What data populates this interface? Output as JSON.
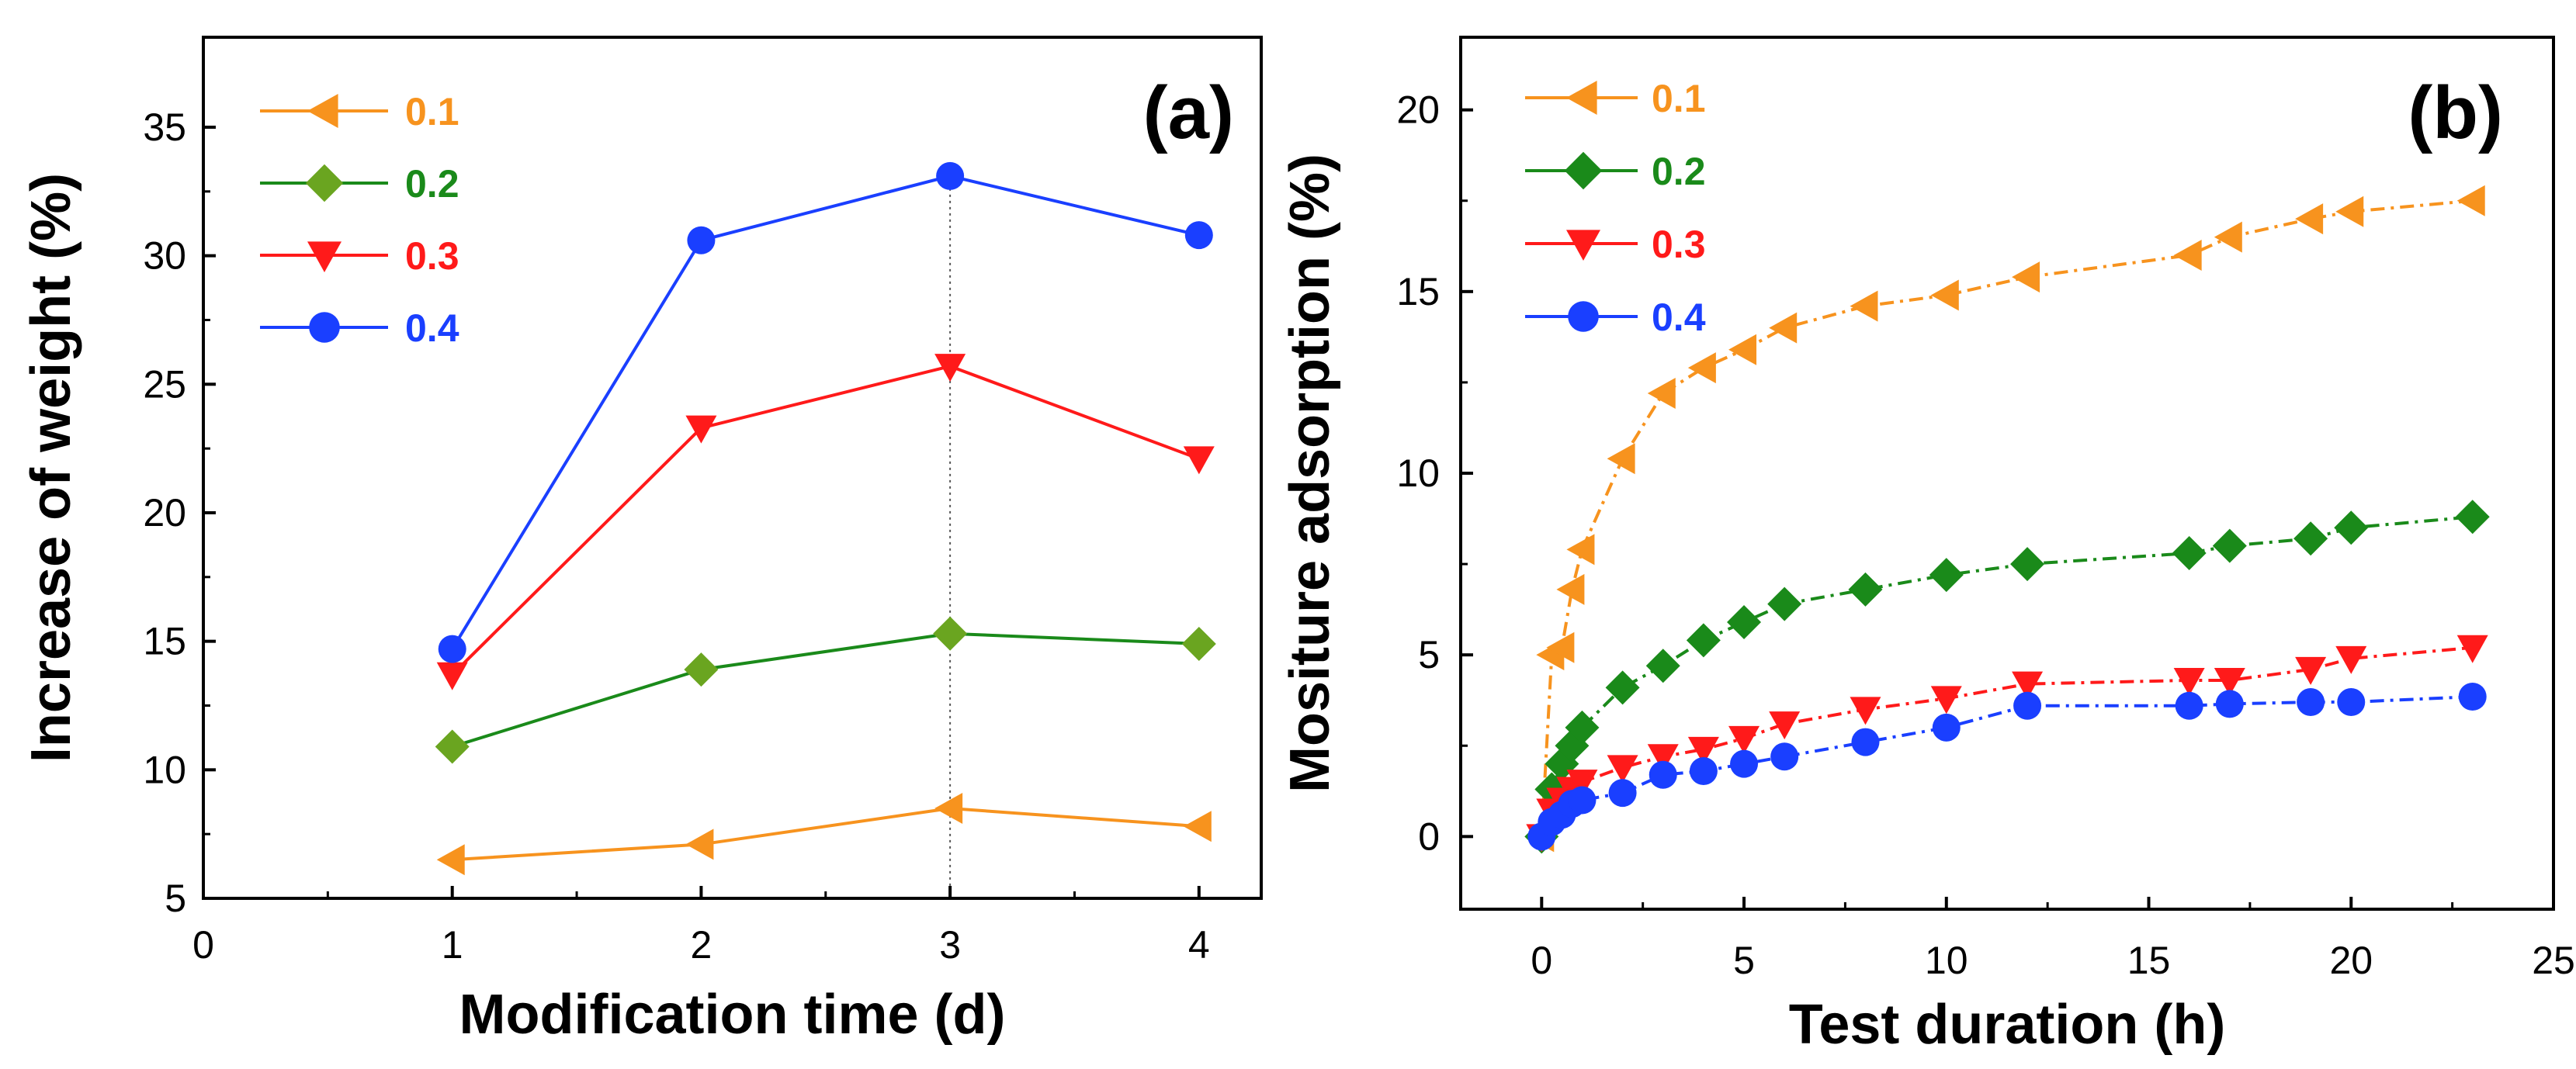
{
  "chart_data": [
    {
      "type": "line",
      "panel_label": "(a)",
      "xlabel": "Modification time (d)",
      "ylabel": "Increase of weight (%)",
      "xlim": [
        0,
        4.25
      ],
      "ylim": [
        5,
        38.5
      ],
      "xticks": [
        0,
        1,
        2,
        3,
        4
      ],
      "yticks": [
        5,
        10,
        15,
        20,
        25,
        30,
        35
      ],
      "reference_line_x": 3,
      "legend_position": "top-left",
      "series": [
        {
          "name": "0.1",
          "color": "#f7931e",
          "marker": "triangle-left",
          "x": [
            1,
            2,
            3,
            4
          ],
          "y": [
            6.5,
            7.1,
            8.5,
            7.8
          ]
        },
        {
          "name": "0.2",
          "color": "#1a8a1a",
          "marker": "diamond",
          "marker_color": "#6aa520",
          "x": [
            1,
            2,
            3,
            4
          ],
          "y": [
            10.9,
            13.9,
            15.3,
            14.9
          ]
        },
        {
          "name": "0.3",
          "color": "#ff1a1a",
          "marker": "triangle-down",
          "x": [
            1,
            2,
            3,
            4
          ],
          "y": [
            13.7,
            23.3,
            25.7,
            22.1
          ]
        },
        {
          "name": "0.4",
          "color": "#1a3fff",
          "marker": "circle",
          "x": [
            1,
            2,
            3,
            4
          ],
          "y": [
            14.7,
            30.6,
            33.1,
            30.8
          ]
        }
      ]
    },
    {
      "type": "line",
      "panel_label": "(b)",
      "xlabel": "Test duration (h)",
      "ylabel": "Mositure adsorption (%)",
      "xlim": [
        -2,
        25
      ],
      "ylim": [
        -2,
        22
      ],
      "xticks": [
        0,
        5,
        10,
        15,
        20,
        25
      ],
      "yticks": [
        0,
        5,
        10,
        15,
        20
      ],
      "legend_position": "top-left",
      "series": [
        {
          "name": "0.1",
          "color": "#f7931e",
          "marker": "triangle-left",
          "x": [
            0,
            0.25,
            0.5,
            0.75,
            1,
            2,
            3,
            4,
            5,
            6,
            8,
            10,
            12,
            16,
            17,
            19,
            20,
            23
          ],
          "y": [
            0,
            5.0,
            5.2,
            6.8,
            7.9,
            10.4,
            12.2,
            12.9,
            13.4,
            14.0,
            14.6,
            14.9,
            15.4,
            16.0,
            16.5,
            17.0,
            17.2,
            17.5
          ]
        },
        {
          "name": "0.2",
          "color": "#1a8a1a",
          "marker": "diamond",
          "x": [
            0,
            0.25,
            0.5,
            0.75,
            1,
            2,
            3,
            4,
            5,
            6,
            8,
            10,
            12,
            16,
            17,
            19,
            20,
            23
          ],
          "y": [
            0,
            1.3,
            2.0,
            2.5,
            3.0,
            4.1,
            4.7,
            5.4,
            5.9,
            6.4,
            6.8,
            7.2,
            7.5,
            7.8,
            8.0,
            8.2,
            8.5,
            8.8
          ]
        },
        {
          "name": "0.3",
          "color": "#ff1a1a",
          "marker": "triangle-down",
          "x": [
            0,
            0.25,
            0.5,
            0.75,
            1,
            2,
            3,
            4,
            5,
            6,
            8,
            10,
            12,
            16,
            17,
            19,
            20,
            23
          ],
          "y": [
            0,
            0.7,
            1.0,
            1.3,
            1.5,
            1.9,
            2.2,
            2.4,
            2.7,
            3.1,
            3.5,
            3.8,
            4.2,
            4.3,
            4.3,
            4.6,
            4.9,
            5.2
          ]
        },
        {
          "name": "0.4",
          "color": "#1a3fff",
          "marker": "circle",
          "x": [
            0,
            0.25,
            0.5,
            0.75,
            1,
            2,
            3,
            4,
            5,
            6,
            8,
            10,
            12,
            16,
            17,
            19,
            20,
            23
          ],
          "y": [
            0,
            0.4,
            0.6,
            0.9,
            1.0,
            1.2,
            1.7,
            1.8,
            2.0,
            2.2,
            2.6,
            3.0,
            3.6,
            3.6,
            3.65,
            3.7,
            3.7,
            3.85
          ]
        }
      ]
    }
  ]
}
